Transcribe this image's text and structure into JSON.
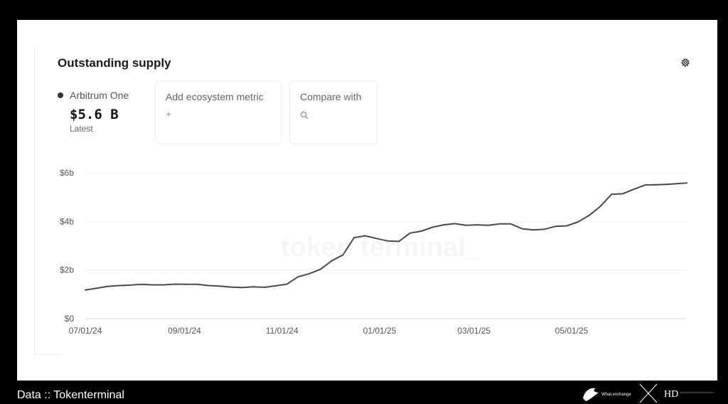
{
  "card": {
    "title": "Outstanding supply",
    "series_name": "Arbitrum One",
    "latest_value": "$5.6 B",
    "latest_label": "Latest",
    "add_metric_label": "Add ecosystem metric",
    "add_metric_icon": "plus-icon",
    "compare_label": "Compare with",
    "compare_icon": "search-icon",
    "settings_icon": "gear-icon",
    "watermark": "token terminal_"
  },
  "footer": {
    "source": "Data :: Tokenterminal",
    "logo_text": "What.exchange"
  },
  "colors": {
    "line": "#4a4a4a",
    "grid": "#efefef",
    "background": "#ffffff",
    "page": "#000000"
  },
  "chart_data": {
    "type": "line",
    "title": "Outstanding supply",
    "xlabel": "",
    "ylabel": "",
    "ylim": [
      0,
      6
    ],
    "yticks": [
      0,
      2,
      4,
      6
    ],
    "ytick_labels": [
      "$0",
      "$2b",
      "$4b",
      "$6b"
    ],
    "xlim": [
      "2024-07-01",
      "2025-07-12"
    ],
    "xticks": [
      "2024-07-01",
      "2024-09-01",
      "2024-11-01",
      "2025-01-01",
      "2025-03-01",
      "2025-05-01"
    ],
    "xtick_labels": [
      "07/01/24",
      "09/01/24",
      "11/01/24",
      "01/01/25",
      "03/01/25",
      "05/01/25"
    ],
    "grid": true,
    "legend": "none",
    "series": [
      {
        "name": "Arbitrum One",
        "x": [
          "2024-07-01",
          "2024-07-08",
          "2024-07-15",
          "2024-07-22",
          "2024-07-29",
          "2024-08-05",
          "2024-08-12",
          "2024-08-19",
          "2024-08-26",
          "2024-09-02",
          "2024-09-09",
          "2024-09-16",
          "2024-09-23",
          "2024-09-30",
          "2024-10-07",
          "2024-10-14",
          "2024-10-21",
          "2024-10-28",
          "2024-11-04",
          "2024-11-11",
          "2024-11-18",
          "2024-11-25",
          "2024-12-02",
          "2024-12-09",
          "2024-12-16",
          "2024-12-23",
          "2024-12-30",
          "2025-01-06",
          "2025-01-13",
          "2025-01-20",
          "2025-01-27",
          "2025-02-03",
          "2025-02-10",
          "2025-02-17",
          "2025-02-24",
          "2025-03-03",
          "2025-03-10",
          "2025-03-17",
          "2025-03-24",
          "2025-03-31",
          "2025-04-07",
          "2025-04-14",
          "2025-04-21",
          "2025-04-28",
          "2025-05-05",
          "2025-05-12",
          "2025-05-19",
          "2025-05-26",
          "2025-06-02",
          "2025-06-09",
          "2025-06-16",
          "2025-06-23",
          "2025-06-30",
          "2025-07-12"
        ],
        "values": [
          1.18,
          1.25,
          1.33,
          1.36,
          1.38,
          1.41,
          1.39,
          1.39,
          1.42,
          1.41,
          1.41,
          1.36,
          1.34,
          1.3,
          1.28,
          1.31,
          1.29,
          1.35,
          1.42,
          1.72,
          1.85,
          2.03,
          2.38,
          2.62,
          3.33,
          3.41,
          3.3,
          3.2,
          3.18,
          3.52,
          3.6,
          3.76,
          3.86,
          3.91,
          3.84,
          3.86,
          3.84,
          3.9,
          3.9,
          3.7,
          3.65,
          3.68,
          3.8,
          3.82,
          3.98,
          4.25,
          4.62,
          5.12,
          5.14,
          5.33,
          5.5,
          5.51,
          5.53,
          5.58
        ]
      }
    ]
  }
}
